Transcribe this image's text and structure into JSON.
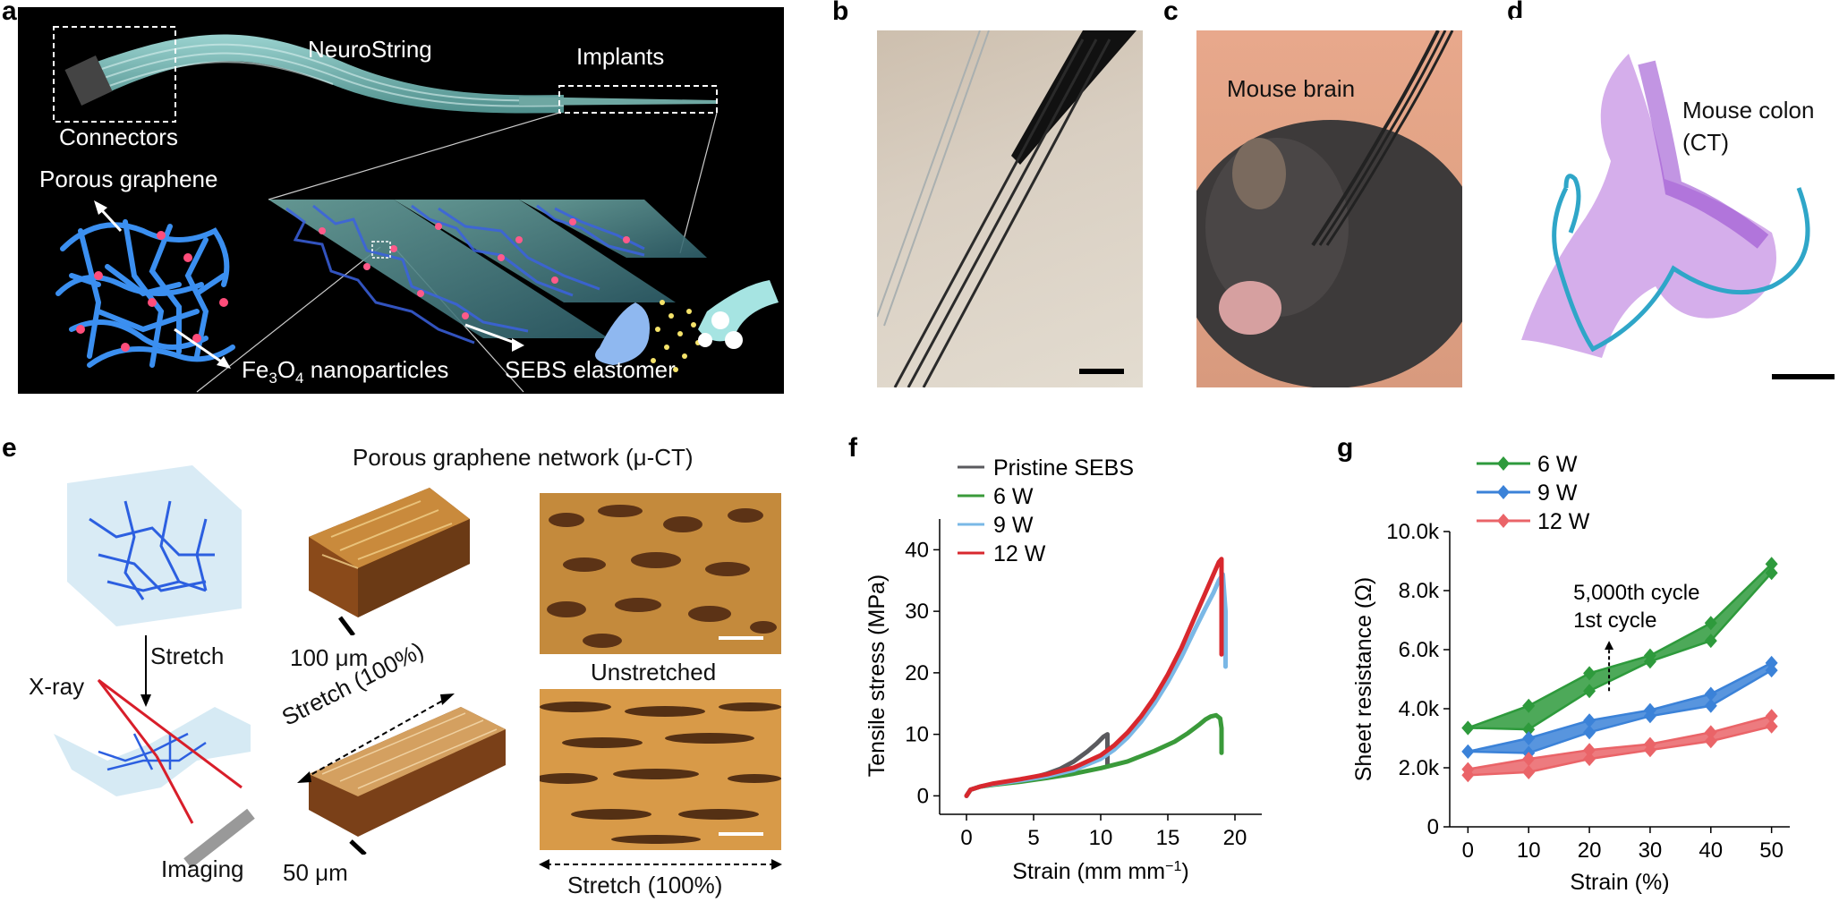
{
  "panels": {
    "a": {
      "letter": "a",
      "connectors": "Connectors",
      "neurostring": "NeuroString",
      "implants": "Implants",
      "porous_graphene": "Porous graphene",
      "fe3o4_prefix": "Fe",
      "fe3o4_sub1": "3",
      "fe3o4_mid": "O",
      "fe3o4_sub2": "4",
      "fe3o4_suffix": " nanoparticles",
      "sebs": "SEBS elastomer"
    },
    "b": {
      "letter": "b"
    },
    "c": {
      "letter": "c",
      "label": "Mouse brain"
    },
    "d": {
      "letter": "d",
      "label_line1": "Mouse colon",
      "label_line2": "(CT)"
    },
    "e": {
      "letter": "e",
      "title": "Porous graphene network (μ-CT)",
      "stretch": "Stretch",
      "xray": "X-ray",
      "imaging": "Imaging",
      "scale_100": "100 μm",
      "scale_50": "50 μm",
      "stretch_100_diag": "Stretch (100%)",
      "unstretched": "Unstretched",
      "stretch_100_bottom": "Stretch (100%)"
    }
  },
  "chart_data": [
    {
      "panel": "f",
      "type": "line",
      "xlabel": "Strain (mm mm",
      "xlabel_sup": "−1",
      "xlabel_close": ")",
      "ylabel": "Tensile stress (MPa)",
      "xlim": [
        -2,
        22
      ],
      "ylim": [
        -3,
        45
      ],
      "xticks": [
        0,
        5,
        10,
        15,
        20
      ],
      "yticks": [
        0,
        10,
        20,
        30,
        40
      ],
      "legend_position": "top-left",
      "series": [
        {
          "name": "Pristine SEBS",
          "color": "#5a5a5e",
          "x": [
            0,
            0.3,
            1,
            2,
            3,
            4,
            5,
            6,
            7,
            8,
            9,
            9.7,
            10.2,
            10.5,
            10.5
          ],
          "y": [
            0,
            1.0,
            1.5,
            1.9,
            2.2,
            2.6,
            3.0,
            3.6,
            4.4,
            5.6,
            7.2,
            8.5,
            9.6,
            10,
            5
          ]
        },
        {
          "name": "6 W",
          "color": "#3a9a3a",
          "x": [
            0,
            0.3,
            1,
            2,
            4,
            6,
            8,
            10,
            12,
            14,
            15.5,
            16.5,
            17.3,
            17.8,
            18.2,
            18.6,
            18.9,
            19.0,
            19.0
          ],
          "y": [
            0,
            1.0,
            1.5,
            1.8,
            2.3,
            2.9,
            3.6,
            4.5,
            5.6,
            7.3,
            8.8,
            10.2,
            11.5,
            12.4,
            12.9,
            13.1,
            12.6,
            11,
            7
          ]
        },
        {
          "name": "9 W",
          "color": "#7ab8e6",
          "x": [
            0,
            0.3,
            1,
            2,
            4,
            6,
            8,
            10,
            11,
            12,
            13,
            14,
            15,
            16,
            17,
            17.8,
            18.4,
            18.8,
            19.1,
            19.3,
            19.3
          ],
          "y": [
            0,
            1.0,
            1.5,
            1.9,
            2.5,
            3.2,
            4.2,
            6.0,
            7.5,
            9.5,
            12.0,
            15.0,
            18.5,
            22.5,
            27.0,
            30.5,
            33.0,
            35.0,
            36.0,
            30,
            21
          ]
        },
        {
          "name": "12 W",
          "color": "#d8282e",
          "x": [
            0,
            0.3,
            1,
            2,
            4,
            6,
            8,
            10,
            11,
            12,
            13,
            14,
            15,
            16,
            17,
            17.8,
            18.4,
            18.8,
            19.0,
            19.0
          ],
          "y": [
            0,
            1.0,
            1.5,
            2.0,
            2.7,
            3.5,
            4.6,
            6.6,
            8.2,
            10.3,
            12.9,
            16.0,
            19.7,
            24.0,
            29.0,
            33.0,
            36.0,
            38.0,
            38.5,
            23
          ]
        }
      ]
    },
    {
      "panel": "g",
      "type": "line",
      "xlabel": "Strain (%)",
      "ylabel": "Sheet resistance (Ω)",
      "xlim": [
        -3,
        53
      ],
      "ylim": [
        0,
        10000
      ],
      "xticks": [
        0,
        10,
        20,
        30,
        40,
        50
      ],
      "yticks": [
        0,
        2000,
        4000,
        6000,
        8000,
        10000
      ],
      "ytick_labels": [
        "0",
        "2.0k",
        "4.0k",
        "6.0k",
        "8.0k",
        "10.0k"
      ],
      "legend_position": "top-left",
      "annotation_top": "5,000th cycle",
      "annotation_bottom": "1st cycle",
      "series": [
        {
          "name": "6 W",
          "color": "#2e9a3c",
          "x": [
            0,
            10,
            20,
            30,
            40,
            50
          ],
          "first": [
            3350,
            3300,
            4600,
            5600,
            6300,
            8600
          ],
          "last": [
            3350,
            4100,
            5200,
            5800,
            6900,
            8900
          ]
        },
        {
          "name": "9 W",
          "color": "#3b82d8",
          "x": [
            0,
            10,
            20,
            30,
            40,
            50
          ],
          "first": [
            2550,
            2500,
            3200,
            3750,
            4100,
            5300
          ],
          "last": [
            2550,
            3000,
            3600,
            3950,
            4500,
            5550
          ]
        },
        {
          "name": "12 W",
          "color": "#ea6468",
          "x": [
            0,
            10,
            20,
            30,
            40,
            50
          ],
          "first": [
            1750,
            1850,
            2300,
            2600,
            2900,
            3400
          ],
          "last": [
            1950,
            2300,
            2600,
            2800,
            3200,
            3750
          ]
        }
      ]
    }
  ]
}
